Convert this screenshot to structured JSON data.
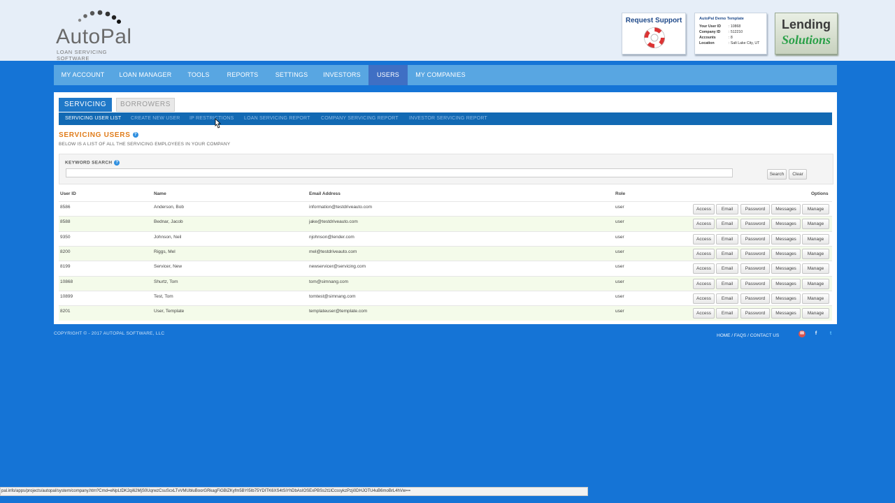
{
  "brand": {
    "name": "AutoPal",
    "tagline": "LOAN SERVICING SOFTWARE"
  },
  "support": {
    "label": "Request Support"
  },
  "account_info": {
    "title": "AutoPal Demo Template",
    "rows": [
      {
        "label": "Your User ID",
        "value": ": 10868"
      },
      {
        "label": "Company ID",
        "value": ": 512210"
      },
      {
        "label": "Accounts",
        "value": ": 8"
      },
      {
        "label": "Location",
        "value": ": Salt Lake City, UT"
      }
    ]
  },
  "partner": {
    "line1": "Lending",
    "line2": "Solutions"
  },
  "main_nav": {
    "items": [
      "MY ACCOUNT",
      "LOAN MANAGER",
      "TOOLS",
      "REPORTS",
      "SETTINGS",
      "INVESTORS",
      "USERS",
      "MY COMPANIES"
    ],
    "active": "USERS"
  },
  "tabs": {
    "servicing": "SERVICING",
    "borrowers": "BORROWERS",
    "active": "SERVICING"
  },
  "sub_nav": {
    "items": [
      "SERVICING USER LIST",
      "CREATE NEW USER",
      "IP RESTRICTIONS",
      "LOAN SERVICING REPORT",
      "COMPANY SERVICING REPORT",
      "INVESTOR SERVICING REPORT"
    ],
    "active": "SERVICING USER LIST"
  },
  "page": {
    "title": "SERVICING USERS",
    "description": "BELOW IS A LIST OF ALL THE SERVICING EMPLOYEES IN YOUR COMPANY"
  },
  "search": {
    "label": "KEYWORD SEARCH",
    "value": "",
    "search_button": "Search",
    "clear_button": "Clear"
  },
  "table": {
    "columns": [
      "User ID",
      "Name",
      "Email Address",
      "Role",
      "Options"
    ],
    "actions": [
      "Access",
      "Email",
      "Password",
      "Messages",
      "Manage"
    ],
    "rows": [
      {
        "id": "8586",
        "name": "Anderson, Bob",
        "email": "information@testdriveauto.com",
        "role": "user"
      },
      {
        "id": "8588",
        "name": "Bednar, Jacob",
        "email": "jake@testdriveauto.com",
        "role": "user"
      },
      {
        "id": "9350",
        "name": "Johnson, Neil",
        "email": "njohnson@lender.com",
        "role": "user"
      },
      {
        "id": "8200",
        "name": "Riggs, Mel",
        "email": "mel@testdriveauto.com",
        "role": "user"
      },
      {
        "id": "8199",
        "name": "Servicer, New",
        "email": "newservicer@servicing.com",
        "role": "user"
      },
      {
        "id": "10868",
        "name": "Shurtz, Tom",
        "email": "tom@simnang.com",
        "role": "user"
      },
      {
        "id": "10899",
        "name": "Test, Tom",
        "email": "tomtest@simnang.com",
        "role": "user"
      },
      {
        "id": "8201",
        "name": "User, Template",
        "email": "templateuser@template.com",
        "role": "user"
      }
    ]
  },
  "footer": {
    "copyright": "COPYRIGHT © - 2017 AUTOPAL SOFTWARE, LLC",
    "links": [
      "HOME",
      "FAQS",
      "CONTACT US"
    ],
    "separator": " / ",
    "social": [
      "email-icon",
      "facebook-icon",
      "twitter-icon"
    ],
    "social_glyphs": {
      "email": "✉",
      "facebook": "f",
      "twitter": "t"
    }
  },
  "status_bar": {
    "url": "pal.info/apps/projects/autopal/system/company.htm?Cmd=eNpLtDK2qi62MjS0UqrwzCsuScxLTvVMUbluBoorGRkagFiGBlZKyfm5BYI5Ib75YDITK6XS4tSiYhDbAsIOSExPBSs2t1lCcssykzPzji0DHJOTU4uB6moBrL4hVw=="
  },
  "colors": {
    "page_bg": "#1574d6",
    "nav_bg": "#58a6e2",
    "nav_active": "#3f6fc4",
    "subnav_bg": "#1269b3",
    "title_orange": "#e07c1a",
    "row_alt": "#f4fbea"
  }
}
